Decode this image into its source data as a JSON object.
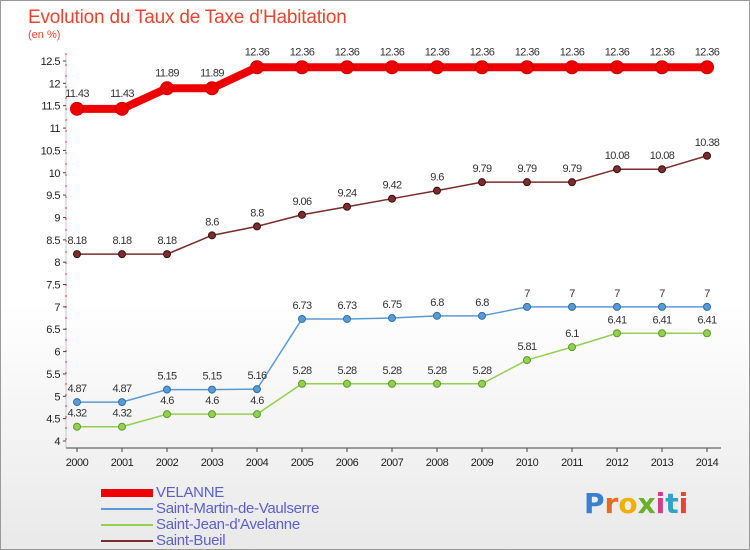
{
  "chart_data": {
    "type": "line",
    "title": "Evolution du Taux de Taxe d'Habitation",
    "ylabel": "(en %)",
    "x": [
      "2000",
      "2001",
      "2002",
      "2003",
      "2004",
      "2005",
      "2006",
      "2007",
      "2008",
      "2009",
      "2010",
      "2011",
      "2012",
      "2013",
      "2014"
    ],
    "ylim": [
      4,
      12.5
    ],
    "yticks": [
      "4",
      "4.5",
      "5",
      "5.5",
      "6",
      "6.5",
      "7",
      "7.5",
      "8",
      "8.5",
      "9",
      "9.5",
      "10",
      "10.5",
      "11",
      "11.5",
      "12",
      "12.5"
    ],
    "grid": false,
    "legend_position": "bottom-left",
    "series": [
      {
        "name": "VELANNE",
        "color": "#ee0000",
        "values": [
          11.43,
          11.43,
          11.89,
          11.89,
          12.36,
          12.36,
          12.36,
          12.36,
          12.36,
          12.36,
          12.36,
          12.36,
          12.36,
          12.36,
          12.36
        ],
        "labels": [
          "11.43",
          "11.43",
          "11.89",
          "11.89",
          "12.36",
          "12.36",
          "12.36",
          "12.36",
          "12.36",
          "12.36",
          "12.36",
          "12.36",
          "12.36",
          "12.36",
          "12.36"
        ]
      },
      {
        "name": "Saint-Martin-de-Vaulserre",
        "color": "#5b9bd5",
        "values": [
          4.87,
          4.87,
          5.15,
          5.15,
          5.16,
          6.73,
          6.73,
          6.75,
          6.8,
          6.8,
          7,
          7,
          7,
          7,
          7
        ],
        "labels": [
          "4.87",
          "4.87",
          "5.15",
          "5.15",
          "5.16",
          "6.73",
          "6.73",
          "6.75",
          "6.8",
          "6.8",
          "7",
          "7",
          "7",
          "7",
          "7"
        ]
      },
      {
        "name": "Saint-Jean-d'Avelanne",
        "color": "#92d050",
        "values": [
          4.32,
          4.32,
          4.6,
          4.6,
          4.6,
          5.28,
          5.28,
          5.28,
          5.28,
          5.28,
          5.81,
          6.1,
          6.41,
          6.41,
          6.41
        ],
        "labels": [
          "4.32",
          "4.32",
          "4.6",
          "4.6",
          "4.6",
          "5.28",
          "5.28",
          "5.28",
          "5.28",
          "5.28",
          "5.81",
          "6.1",
          "6.41",
          "6.41",
          "6.41"
        ]
      },
      {
        "name": "Saint-Bueil",
        "color": "#7b2c2c",
        "values": [
          8.18,
          8.18,
          8.18,
          8.6,
          8.8,
          9.06,
          9.24,
          9.42,
          9.6,
          9.79,
          9.79,
          9.79,
          10.08,
          10.08,
          10.38
        ],
        "labels": [
          "8.18",
          "8.18",
          "8.18",
          "8.6",
          "8.8",
          "9.06",
          "9.24",
          "9.42",
          "9.6",
          "9.79",
          "9.79",
          "9.79",
          "10.08",
          "10.08",
          "10.38"
        ]
      }
    ]
  },
  "logo": {
    "letters": [
      "P",
      "r",
      "o",
      "x",
      "i",
      "t",
      "i"
    ],
    "colors": [
      "#3a7fd0",
      "#e86b1f",
      "#f0b000",
      "#6ab02e",
      "#d63a8a",
      "#2fa3c8",
      "#e8452c"
    ]
  }
}
